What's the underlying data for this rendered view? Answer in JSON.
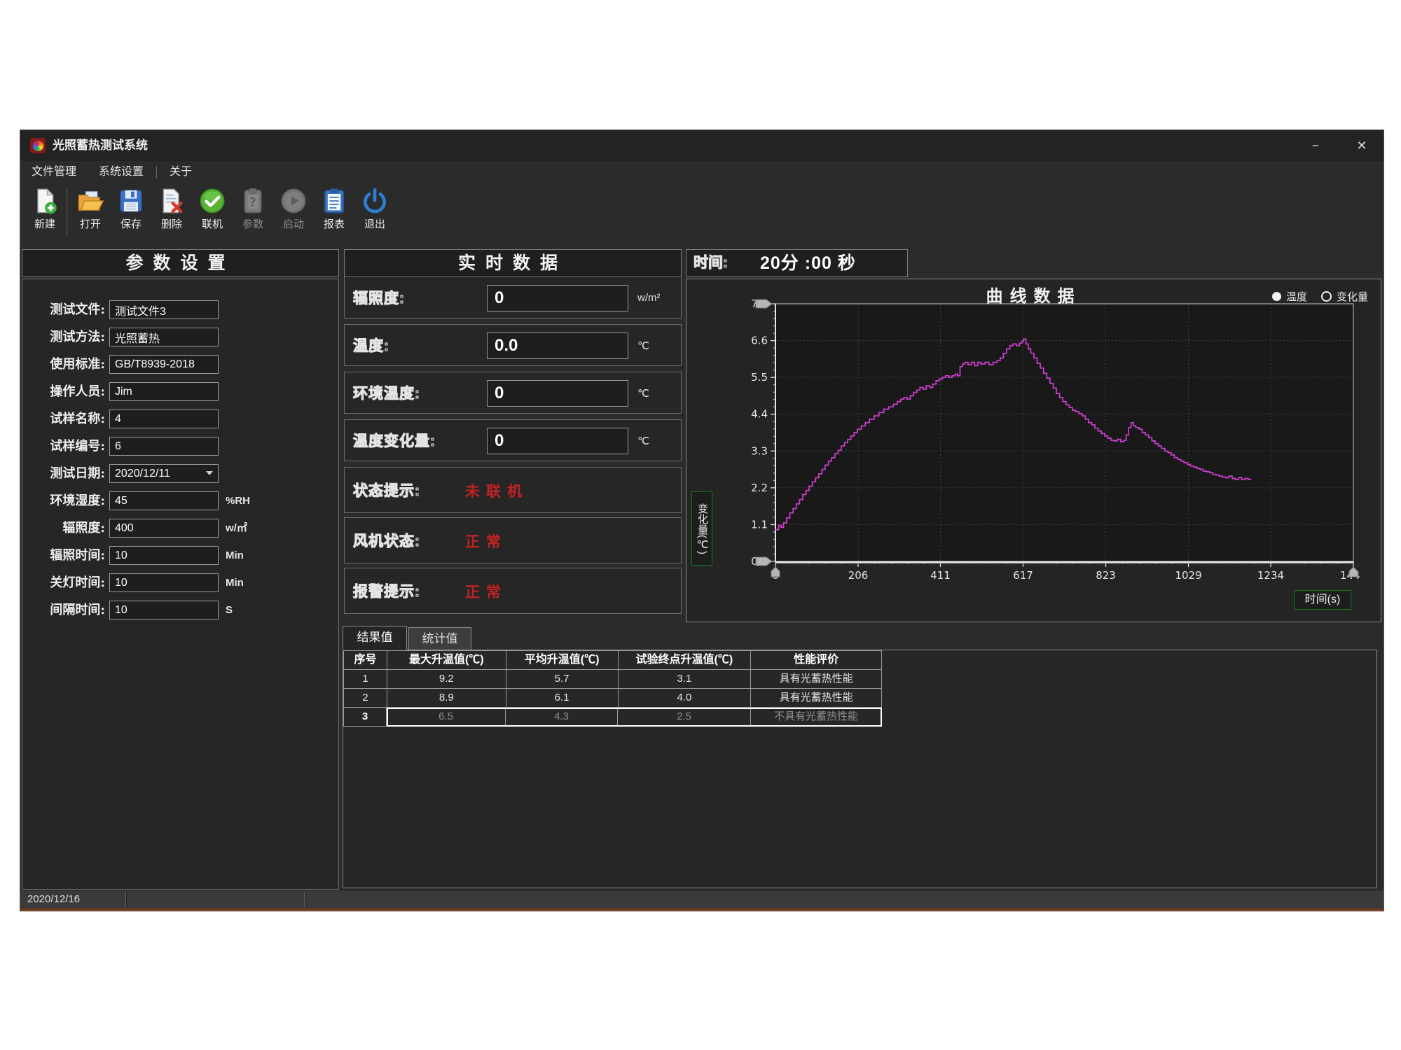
{
  "window": {
    "title": "光照蓄热测试系统"
  },
  "titlebar": {
    "minimize": "−",
    "close": "✕"
  },
  "menu": {
    "items": [
      "文件管理",
      "系统设置",
      "关于"
    ]
  },
  "toolbar": {
    "buttons": [
      {
        "label": "新建",
        "icon": "new-file-icon",
        "disabled": false
      },
      {
        "label": "打开",
        "icon": "open-folder-icon",
        "disabled": false
      },
      {
        "label": "保存",
        "icon": "save-icon",
        "disabled": false
      },
      {
        "label": "删除",
        "icon": "delete-icon",
        "disabled": false
      },
      {
        "label": "联机",
        "icon": "connect-icon",
        "disabled": false
      },
      {
        "label": "参数",
        "icon": "parameters-icon",
        "disabled": true
      },
      {
        "label": "启动",
        "icon": "start-icon",
        "disabled": true
      },
      {
        "label": "报表",
        "icon": "report-icon",
        "disabled": false
      },
      {
        "label": "退出",
        "icon": "exit-icon",
        "disabled": false
      }
    ]
  },
  "left_panel": {
    "title": "参数设置",
    "fields": [
      {
        "label": "测试文件:",
        "value": "测试文件3",
        "unit": ""
      },
      {
        "label": "测试方法:",
        "value": "光照蓄热",
        "unit": ""
      },
      {
        "label": "使用标准:",
        "value": "GB/T8939-2018",
        "unit": ""
      },
      {
        "label": "操作人员:",
        "value": "Jim",
        "unit": ""
      },
      {
        "label": "试样名称:",
        "value": "4",
        "unit": ""
      },
      {
        "label": "试样编号:",
        "value": "6",
        "unit": ""
      },
      {
        "label": "测试日期:",
        "value": "2020/12/11",
        "unit": ""
      },
      {
        "label": "环境湿度:",
        "value": "45",
        "unit": "%RH"
      },
      {
        "label": "辐照度:",
        "value": "400",
        "unit": "w/㎡"
      },
      {
        "label": "辐照时间:",
        "value": "10",
        "unit": "Min"
      },
      {
        "label": "关灯时间:",
        "value": "10",
        "unit": "Min"
      },
      {
        "label": "间隔时间:",
        "value": "10",
        "unit": "S"
      }
    ]
  },
  "middle_panel": {
    "title": "实时数据",
    "measurements": [
      {
        "label": "辐照度:",
        "value": "0",
        "unit": "w/m²"
      },
      {
        "label": "温度:",
        "value": "0.0",
        "unit": "℃"
      },
      {
        "label": "环境温度:",
        "value": "0",
        "unit": "℃"
      },
      {
        "label": "温度变化量:",
        "value": "0",
        "unit": "℃"
      }
    ],
    "statuses": [
      {
        "label": "状态提示:",
        "value": "未联机"
      },
      {
        "label": "风机状态:",
        "value": "正常"
      },
      {
        "label": "报警提示:",
        "value": "正常"
      }
    ]
  },
  "time_bar": {
    "label": "时间:",
    "value": "20分 :00 秒"
  },
  "results": {
    "tabs": [
      {
        "label": "结果值",
        "active": true
      },
      {
        "label": "统计值",
        "active": false
      }
    ],
    "table": {
      "headers": [
        "序号",
        "最大升温值(℃)",
        "平均升温值(℃)",
        "试验终点升温值(℃)",
        "性能评价"
      ],
      "rows": [
        {
          "cells": [
            "1",
            "9.2",
            "5.7",
            "3.1",
            "具有光蓄热性能"
          ],
          "selected": false
        },
        {
          "cells": [
            "2",
            "8.9",
            "6.1",
            "4.0",
            "具有光蓄热性能"
          ],
          "selected": false
        },
        {
          "cells": [
            "3",
            "6.5",
            "4.3",
            "2.5",
            "不具有光蓄热性能"
          ],
          "selected": true
        }
      ]
    }
  },
  "status_bar": {
    "date": "2020/12/16"
  },
  "chart_data": {
    "type": "line",
    "title": "曲线数据",
    "xlabel": "时间(s)",
    "ylabel": "变化量(℃)",
    "legend": [
      {
        "label": "温度",
        "selected": true
      },
      {
        "label": "变化量",
        "selected": false
      }
    ],
    "xlim": [
      0,
      1440
    ],
    "ylim": [
      0,
      7.7
    ],
    "xticks": [
      0,
      206,
      411,
      617,
      823,
      1029,
      1234,
      1440
    ],
    "yticks": [
      0.0,
      1.1,
      2.2,
      3.3,
      4.4,
      5.5,
      6.6,
      7.7
    ],
    "grid": true,
    "line_color": "#cf3ecf",
    "series": [
      {
        "name": "变化量",
        "points": [
          [
            0,
            0.95
          ],
          [
            8,
            1.08
          ],
          [
            14,
            1.02
          ],
          [
            20,
            1.15
          ],
          [
            28,
            1.3
          ],
          [
            36,
            1.45
          ],
          [
            44,
            1.58
          ],
          [
            52,
            1.72
          ],
          [
            60,
            1.85
          ],
          [
            68,
            2.0
          ],
          [
            76,
            2.12
          ],
          [
            84,
            2.25
          ],
          [
            92,
            2.38
          ],
          [
            100,
            2.5
          ],
          [
            108,
            2.62
          ],
          [
            116,
            2.75
          ],
          [
            124,
            2.88
          ],
          [
            132,
            3.0
          ],
          [
            140,
            3.1
          ],
          [
            148,
            3.22
          ],
          [
            156,
            3.32
          ],
          [
            164,
            3.45
          ],
          [
            172,
            3.55
          ],
          [
            180,
            3.65
          ],
          [
            188,
            3.75
          ],
          [
            196,
            3.85
          ],
          [
            204,
            3.95
          ],
          [
            214,
            4.05
          ],
          [
            224,
            4.15
          ],
          [
            234,
            4.25
          ],
          [
            246,
            4.35
          ],
          [
            258,
            4.45
          ],
          [
            270,
            4.55
          ],
          [
            282,
            4.62
          ],
          [
            294,
            4.7
          ],
          [
            304,
            4.78
          ],
          [
            312,
            4.85
          ],
          [
            320,
            4.9
          ],
          [
            328,
            4.85
          ],
          [
            336,
            4.95
          ],
          [
            344,
            5.05
          ],
          [
            352,
            5.12
          ],
          [
            360,
            5.2
          ],
          [
            368,
            5.15
          ],
          [
            376,
            5.25
          ],
          [
            384,
            5.2
          ],
          [
            392,
            5.3
          ],
          [
            400,
            5.4
          ],
          [
            408,
            5.45
          ],
          [
            416,
            5.5
          ],
          [
            424,
            5.55
          ],
          [
            432,
            5.5
          ],
          [
            440,
            5.55
          ],
          [
            448,
            5.6
          ],
          [
            454,
            5.55
          ],
          [
            460,
            5.82
          ],
          [
            466,
            5.9
          ],
          [
            472,
            5.95
          ],
          [
            480,
            5.88
          ],
          [
            488,
            5.95
          ],
          [
            496,
            5.85
          ],
          [
            504,
            5.95
          ],
          [
            512,
            5.9
          ],
          [
            522,
            5.95
          ],
          [
            532,
            5.88
          ],
          [
            542,
            5.95
          ],
          [
            552,
            6.0
          ],
          [
            560,
            6.08
          ],
          [
            568,
            6.22
          ],
          [
            576,
            6.35
          ],
          [
            584,
            6.45
          ],
          [
            592,
            6.5
          ],
          [
            600,
            6.45
          ],
          [
            608,
            6.52
          ],
          [
            614,
            6.58
          ],
          [
            618,
            6.65
          ],
          [
            624,
            6.5
          ],
          [
            630,
            6.35
          ],
          [
            636,
            6.22
          ],
          [
            644,
            6.08
          ],
          [
            652,
            5.92
          ],
          [
            660,
            5.78
          ],
          [
            668,
            5.62
          ],
          [
            676,
            5.48
          ],
          [
            684,
            5.32
          ],
          [
            692,
            5.18
          ],
          [
            700,
            5.02
          ],
          [
            708,
            4.9
          ],
          [
            716,
            4.78
          ],
          [
            724,
            4.68
          ],
          [
            732,
            4.6
          ],
          [
            740,
            4.52
          ],
          [
            748,
            4.48
          ],
          [
            756,
            4.42
          ],
          [
            764,
            4.35
          ],
          [
            772,
            4.25
          ],
          [
            780,
            4.15
          ],
          [
            788,
            4.08
          ],
          [
            796,
            3.98
          ],
          [
            804,
            3.9
          ],
          [
            812,
            3.82
          ],
          [
            820,
            3.75
          ],
          [
            828,
            3.68
          ],
          [
            836,
            3.62
          ],
          [
            844,
            3.6
          ],
          [
            852,
            3.65
          ],
          [
            860,
            3.58
          ],
          [
            868,
            3.62
          ],
          [
            874,
            3.78
          ],
          [
            880,
            4.0
          ],
          [
            886,
            4.15
          ],
          [
            892,
            4.05
          ],
          [
            898,
            4.0
          ],
          [
            906,
            3.95
          ],
          [
            914,
            3.85
          ],
          [
            922,
            3.78
          ],
          [
            930,
            3.7
          ],
          [
            938,
            3.6
          ],
          [
            946,
            3.52
          ],
          [
            954,
            3.45
          ],
          [
            962,
            3.38
          ],
          [
            970,
            3.3
          ],
          [
            978,
            3.25
          ],
          [
            986,
            3.18
          ],
          [
            994,
            3.1
          ],
          [
            1002,
            3.05
          ],
          [
            1010,
            3.0
          ],
          [
            1018,
            2.95
          ],
          [
            1026,
            2.9
          ],
          [
            1034,
            2.85
          ],
          [
            1042,
            2.82
          ],
          [
            1050,
            2.78
          ],
          [
            1058,
            2.75
          ],
          [
            1066,
            2.7
          ],
          [
            1074,
            2.68
          ],
          [
            1082,
            2.65
          ],
          [
            1090,
            2.6
          ],
          [
            1098,
            2.58
          ],
          [
            1106,
            2.55
          ],
          [
            1114,
            2.52
          ],
          [
            1122,
            2.5
          ],
          [
            1130,
            2.55
          ],
          [
            1138,
            2.48
          ],
          [
            1146,
            2.45
          ],
          [
            1154,
            2.5
          ],
          [
            1162,
            2.45
          ],
          [
            1170,
            2.48
          ],
          [
            1178,
            2.45
          ],
          [
            1186,
            2.45
          ]
        ]
      }
    ]
  }
}
